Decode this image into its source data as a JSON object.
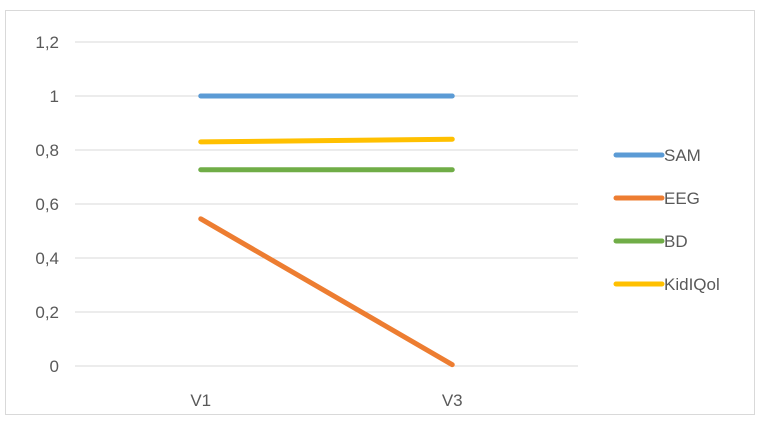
{
  "chart_data": {
    "type": "line",
    "categories": [
      "V1",
      "V3"
    ],
    "series": [
      {
        "name": "SAM",
        "color": "#5b9bd5",
        "values": [
          1.0,
          1.0
        ]
      },
      {
        "name": "EEG",
        "color": "#ed7d31",
        "values": [
          0.545,
          0.005
        ]
      },
      {
        "name": "BD",
        "color": "#70ad47",
        "values": [
          0.727,
          0.727
        ]
      },
      {
        "name": "KidIQol",
        "color": "#ffc000",
        "values": [
          0.83,
          0.84
        ]
      }
    ],
    "ylim": [
      0,
      1.2
    ],
    "yticks": [
      "0",
      "0,2",
      "0,4",
      "0,6",
      "0,8",
      "1",
      "1,2"
    ],
    "grid": true,
    "legend_position": "right"
  }
}
